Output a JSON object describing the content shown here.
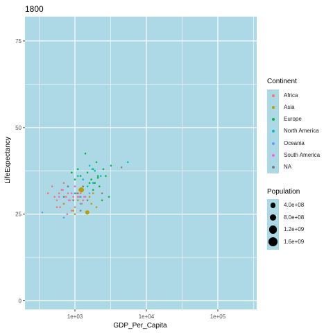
{
  "chart_data": {
    "type": "scatter",
    "title": "1800",
    "xlabel": "GDP_Per_Capita",
    "ylabel": "LifeExpectancy",
    "x_scale": "log10",
    "xlim": [
      200,
      350000
    ],
    "ylim": [
      -2.5,
      82
    ],
    "x_ticks": [
      1000,
      10000,
      100000
    ],
    "x_tick_labels": [
      "1e+03",
      "1e+04",
      "1e+05"
    ],
    "y_ticks": [
      0,
      25,
      50,
      75
    ],
    "y_tick_labels": [
      "0",
      "25",
      "50",
      "75"
    ],
    "grid": true,
    "panel_color": "#ADD8E6",
    "legend_position": "right",
    "color_legend": {
      "title": "Continent",
      "items": [
        {
          "label": "Africa",
          "color": "#F8766D"
        },
        {
          "label": "Asia",
          "color": "#B79F00"
        },
        {
          "label": "Europe",
          "color": "#00BA38"
        },
        {
          "label": "North America",
          "color": "#00BFC4"
        },
        {
          "label": "Oceania",
          "color": "#619CFF"
        },
        {
          "label": "South America",
          "color": "#F564E3"
        },
        {
          "label": "NA",
          "color": "#7F7F7F"
        }
      ]
    },
    "size_legend": {
      "title": "Population",
      "items": [
        {
          "label": "4.0e+08",
          "value": 400000000
        },
        {
          "label": "8.0e+08",
          "value": 800000000
        },
        {
          "label": "1.2e+09",
          "value": 1200000000
        },
        {
          "label": "1.6e+09",
          "value": 1600000000
        }
      ]
    },
    "series": [
      {
        "name": "Africa",
        "points": [
          [
            420,
            31
          ],
          [
            480,
            33
          ],
          [
            520,
            30
          ],
          [
            560,
            29
          ],
          [
            600,
            31
          ],
          [
            650,
            32
          ],
          [
            700,
            28
          ],
          [
            750,
            30
          ],
          [
            800,
            31
          ],
          [
            850,
            29
          ],
          [
            900,
            31
          ],
          [
            950,
            30
          ],
          [
            1000,
            27
          ],
          [
            1050,
            31
          ],
          [
            1100,
            30
          ],
          [
            1150,
            32
          ],
          [
            1200,
            31
          ],
          [
            1300,
            29
          ],
          [
            700,
            34
          ],
          [
            900,
            26
          ],
          [
            620,
            27
          ],
          [
            1000,
            33
          ],
          [
            1400,
            30
          ],
          [
            780,
            25
          ],
          [
            560,
            27
          ],
          [
            1250,
            28
          ]
        ]
      },
      {
        "name": "Asia",
        "points": [
          [
            1230,
            32
          ],
          [
            1490,
            25.5
          ],
          [
            950,
            26
          ],
          [
            1100,
            29
          ],
          [
            1600,
            30
          ],
          [
            1800,
            31
          ],
          [
            2000,
            27
          ],
          [
            700,
            28
          ],
          [
            1300,
            33
          ],
          [
            1000,
            25
          ],
          [
            1700,
            28
          ]
        ]
      },
      {
        "name": "Europe",
        "points": [
          [
            1400,
            42.5
          ],
          [
            2000,
            40
          ],
          [
            1800,
            38
          ],
          [
            2100,
            36
          ],
          [
            1500,
            37
          ],
          [
            1700,
            35
          ],
          [
            1900,
            34
          ],
          [
            2200,
            33
          ],
          [
            1200,
            36
          ],
          [
            2500,
            38
          ],
          [
            3000,
            30
          ],
          [
            1600,
            34
          ],
          [
            2100,
            35.5
          ],
          [
            1300,
            32
          ],
          [
            2400,
            29
          ],
          [
            1000,
            35
          ],
          [
            900,
            37
          ],
          [
            1100,
            38
          ],
          [
            2700,
            36
          ],
          [
            3200,
            39
          ],
          [
            1800,
            32
          ]
        ]
      },
      {
        "name": "North America",
        "points": [
          [
            1600,
            39
          ],
          [
            1750,
            38
          ],
          [
            1900,
            37.5
          ],
          [
            1100,
            36
          ],
          [
            1300,
            35
          ],
          [
            1500,
            33
          ],
          [
            800,
            33
          ],
          [
            1000,
            31
          ],
          [
            1800,
            34
          ],
          [
            1200,
            30
          ],
          [
            2300,
            36
          ],
          [
            5500,
            40
          ]
        ]
      },
      {
        "name": "Oceania",
        "points": [
          [
            350,
            25.5
          ],
          [
            700,
            24
          ],
          [
            1200,
            28
          ],
          [
            1600,
            31
          ]
        ]
      },
      {
        "name": "South America",
        "points": [
          [
            680,
            32
          ],
          [
            820,
            29
          ],
          [
            1000,
            33
          ],
          [
            1150,
            30
          ],
          [
            900,
            31
          ],
          [
            1350,
            30
          ],
          [
            600,
            30
          ]
        ]
      },
      {
        "name": "NA",
        "points": [
          [
            800,
            33
          ],
          [
            1100,
            31
          ],
          [
            1500,
            29
          ],
          [
            4500,
            38.5
          ],
          [
            1300,
            33
          ],
          [
            950,
            29
          ],
          [
            2400,
            31
          ],
          [
            700,
            30
          ],
          [
            1200,
            26
          ]
        ]
      }
    ],
    "sized_points": [
      {
        "series": "Asia",
        "x": 1230,
        "y": 32,
        "population": 330000000
      },
      {
        "series": "Asia",
        "x": 1490,
        "y": 25.5,
        "population": 170000000
      }
    ]
  }
}
